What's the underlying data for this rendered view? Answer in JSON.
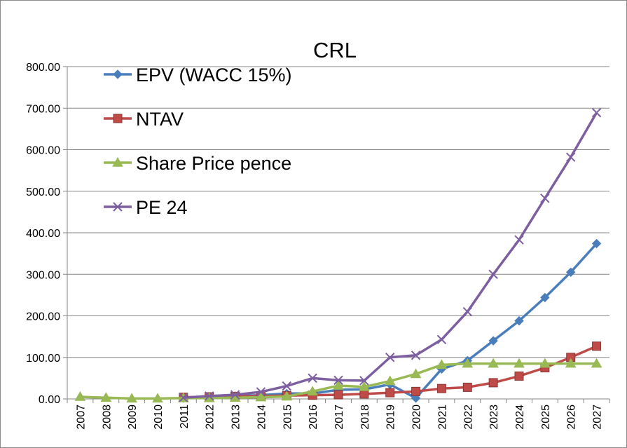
{
  "chart_data": {
    "type": "line",
    "title": "CRL",
    "xlabel": "",
    "ylabel": "",
    "ylim": [
      0,
      800
    ],
    "yticks": [
      "0.00",
      "100.00",
      "200.00",
      "300.00",
      "400.00",
      "500.00",
      "600.00",
      "700.00",
      "800.00"
    ],
    "categories": [
      "2007",
      "2008",
      "2009",
      "2010",
      "2011",
      "2012",
      "2013",
      "2014",
      "2015",
      "2016",
      "2017",
      "2018",
      "2019",
      "2020",
      "2021",
      "2022",
      "2023",
      "2024",
      "2025",
      "2026",
      "2027"
    ],
    "grid": "horizontal",
    "legend_position": "top-left",
    "series": [
      {
        "name": "EPV (WACC 15%)",
        "color": "#4a7ebb",
        "marker": "diamond",
        "values": [
          null,
          null,
          null,
          null,
          2,
          5,
          7,
          9,
          13,
          13,
          22,
          23,
          35,
          2,
          72,
          92,
          140,
          188,
          244,
          305,
          374
        ]
      },
      {
        "name": "NTAV",
        "color": "#be4b48",
        "marker": "square",
        "values": [
          null,
          null,
          null,
          null,
          4,
          5,
          6,
          7,
          8,
          9,
          10,
          12,
          15,
          18,
          25,
          28,
          39,
          55,
          75,
          100,
          127
        ]
      },
      {
        "name": "Share Price pence",
        "color": "#98b954",
        "marker": "triangle",
        "values": [
          5,
          3,
          1,
          1,
          2,
          2,
          3,
          4,
          6,
          18,
          32,
          29,
          43,
          60,
          82,
          85,
          85,
          85,
          85,
          85,
          85
        ]
      },
      {
        "name": "PE 24",
        "color": "#7d5fa0",
        "marker": "x",
        "values": [
          null,
          null,
          null,
          null,
          3,
          7,
          10,
          17,
          31,
          50,
          45,
          44,
          100,
          105,
          143,
          210,
          300,
          383,
          483,
          582,
          689
        ]
      }
    ]
  }
}
